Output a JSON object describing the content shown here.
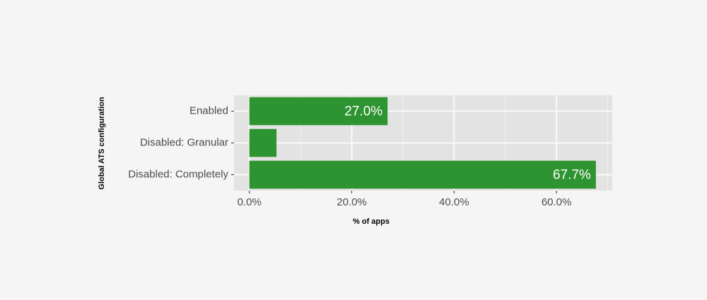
{
  "chart_data": {
    "type": "bar",
    "orientation": "horizontal",
    "x_label": "% of apps",
    "y_label": "Global ATS configuration",
    "categories": [
      "Enabled",
      "Disabled: Granular",
      "Disabled: Completely"
    ],
    "values": [
      27.0,
      5.3,
      67.7
    ],
    "value_labels": [
      "27.0%",
      null,
      "67.7%"
    ],
    "color": "#2e9331",
    "xlim": [
      -3.0,
      70.9
    ],
    "xticks": [
      {
        "value": 0,
        "label": "0.0%"
      },
      {
        "value": 20,
        "label": "20.0%"
      },
      {
        "value": 40,
        "label": "40.0%"
      },
      {
        "value": 60,
        "label": "60.0%"
      }
    ],
    "xminor": [
      10,
      30,
      50,
      70
    ],
    "grid": true
  }
}
